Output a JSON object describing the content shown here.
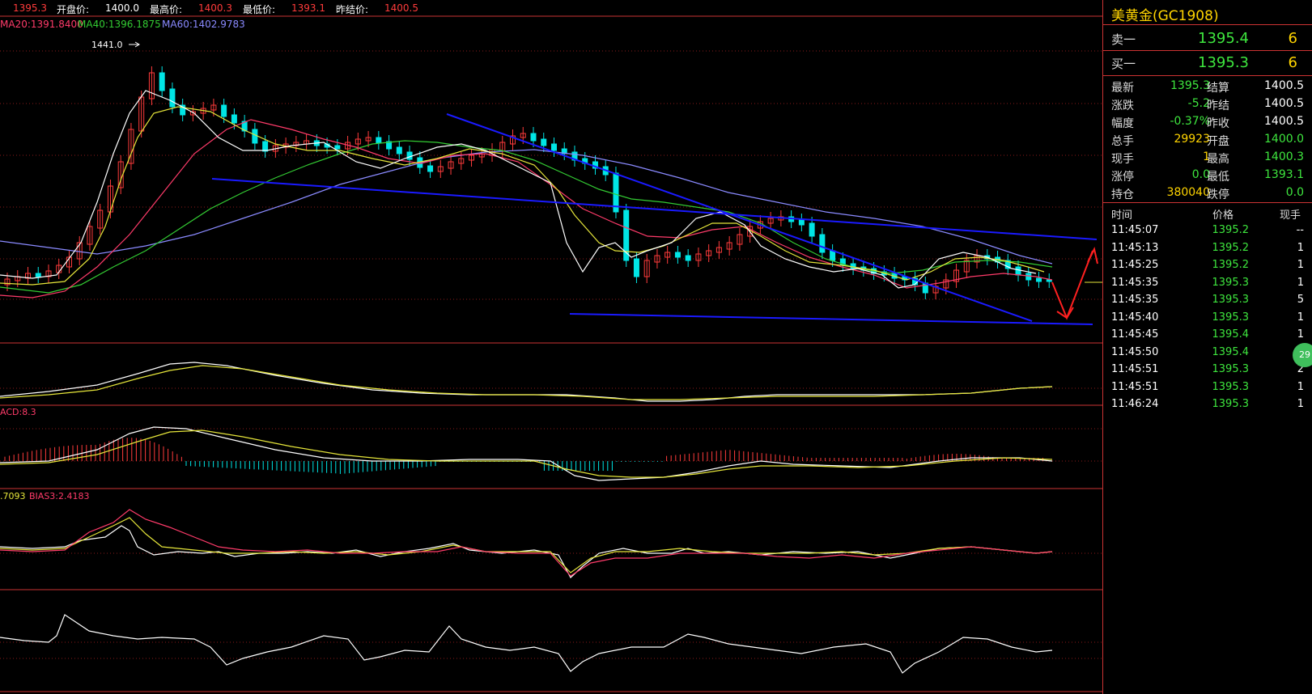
{
  "topbar": {
    "last": "1395.3",
    "open_label": "开盘价:",
    "open_value": "1400.0",
    "high_label": "最高价:",
    "high_value": "1400.3",
    "low_label": "最低价:",
    "low_value": "1393.1",
    "prev_label": "昨结价:",
    "prev_value": "1400.5"
  },
  "ma": {
    "ma20": "MA20:1391.8400",
    "ma40": "MA40:1396.1875",
    "ma60": "MA60:1402.9783"
  },
  "chart": {
    "high_marker": "1441.0",
    "macd_label": "ACD:8.3",
    "bias_label1": ".7093",
    "bias_label2": "BIAS3:2.4183"
  },
  "panel": {
    "title": "美黄金(GC1908)",
    "sell_label": "卖一",
    "sell_price": "1395.4",
    "sell_qty": "6",
    "buy_label": "买一",
    "buy_price": "1395.3",
    "buy_qty": "6",
    "stats": [
      {
        "l1": "最新",
        "v1": "1395.3",
        "c1": "green",
        "l2": "结算",
        "v2": "1400.5",
        "c2": "white"
      },
      {
        "l1": "涨跌",
        "v1": "-5.2",
        "c1": "green",
        "l2": "昨结",
        "v2": "1400.5",
        "c2": "white"
      },
      {
        "l1": "幅度",
        "v1": "-0.37%",
        "c1": "green",
        "l2": "昨收",
        "v2": "1400.5",
        "c2": "white"
      },
      {
        "l1": "总手",
        "v1": "29923",
        "c1": "yellow",
        "l2": "开盘",
        "v2": "1400.0",
        "c2": "green"
      },
      {
        "l1": "现手",
        "v1": "1",
        "c1": "yellow",
        "l2": "最高",
        "v2": "1400.3",
        "c2": "green"
      },
      {
        "l1": "涨停",
        "v1": "0.0",
        "c1": "green",
        "l2": "最低",
        "v2": "1393.1",
        "c2": "green"
      },
      {
        "l1": "持仓",
        "v1": "380040",
        "c1": "yellow",
        "l2": "跌停",
        "v2": "0.0",
        "c2": "green"
      }
    ],
    "ticks_header": {
      "time": "时间",
      "price": "价格",
      "qty": "现手"
    },
    "ticks": [
      {
        "time": "11:45:07",
        "price": "1395.2",
        "qty": "--"
      },
      {
        "time": "11:45:13",
        "price": "1395.2",
        "qty": "1"
      },
      {
        "time": "11:45:25",
        "price": "1395.2",
        "qty": "1"
      },
      {
        "time": "11:45:35",
        "price": "1395.3",
        "qty": "1"
      },
      {
        "time": "11:45:35",
        "price": "1395.3",
        "qty": "5"
      },
      {
        "time": "11:45:40",
        "price": "1395.3",
        "qty": "1"
      },
      {
        "time": "11:45:45",
        "price": "1395.4",
        "qty": "1"
      },
      {
        "time": "11:45:50",
        "price": "1395.4",
        "qty": "4"
      },
      {
        "time": "11:45:51",
        "price": "1395.3",
        "qty": "2"
      },
      {
        "time": "11:45:51",
        "price": "1395.3",
        "qty": "1"
      },
      {
        "time": "11:46:24",
        "price": "1395.3",
        "qty": "1"
      }
    ],
    "badge": "29"
  },
  "colors": {
    "up": "#ff3b3b",
    "down": "#00e5e5",
    "ma_white": "#ffffff",
    "ma_yellow": "#e5e53a",
    "ma20": "#ff3b6a",
    "ma40": "#33cc33",
    "ma60": "#8a8aff",
    "trend": "#1a1aff"
  }
}
